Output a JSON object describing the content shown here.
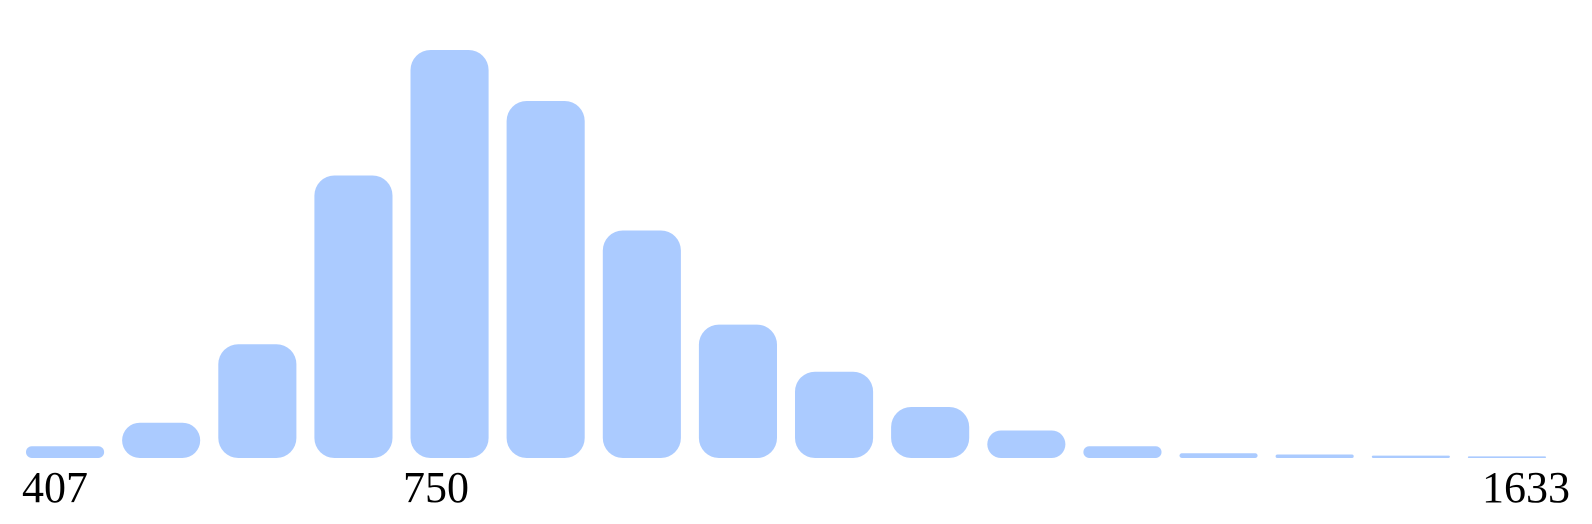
{
  "chart_data": {
    "type": "bar",
    "title": "",
    "xlabel": "",
    "ylabel": "",
    "bins": 16,
    "x_range": [
      407,
      1633
    ],
    "tick_labels": [
      "407",
      "750",
      "1633"
    ],
    "values": [
      3,
      9,
      29,
      72,
      104,
      91,
      58,
      34,
      22,
      13,
      7,
      3,
      1.2,
      0.9,
      0.6,
      0.4
    ],
    "ylim": [
      0,
      104
    ],
    "bar_color": "#abcbff",
    "grid": false,
    "legend": "none"
  }
}
